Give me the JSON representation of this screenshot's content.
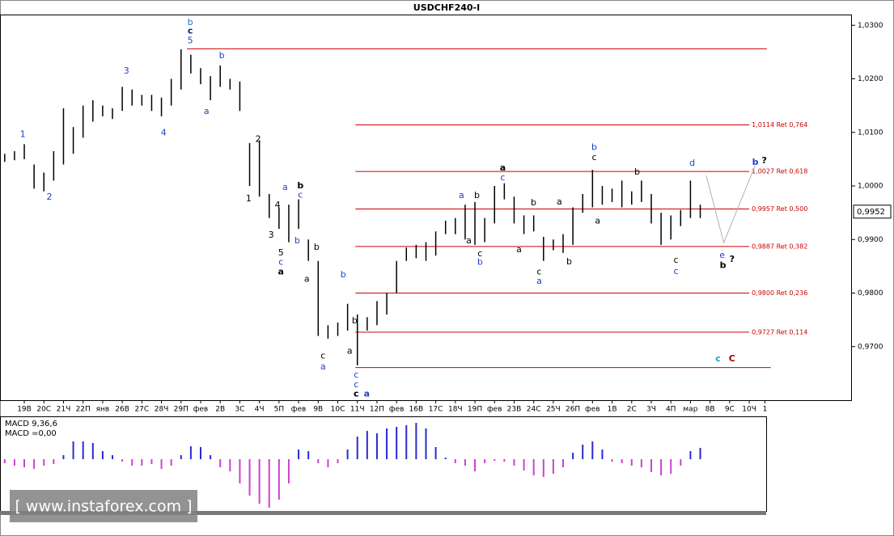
{
  "watermark": "[ www.instaforex.com ]",
  "chart_data": [
    {
      "type": "range-bar",
      "title": "USDCHF240-I",
      "color": "#000000",
      "xlim": [
        -1.24,
        42.2
      ],
      "xticks": [
        {
          "value": 0,
          "label": "19В"
        },
        {
          "value": 1,
          "label": "20С"
        },
        {
          "value": 2,
          "label": "21Ч"
        },
        {
          "value": 3,
          "label": "22П"
        },
        {
          "value": 4,
          "label": "янв"
        },
        {
          "value": 5,
          "label": "26В"
        },
        {
          "value": 6,
          "label": "27С"
        },
        {
          "value": 7,
          "label": "28Ч"
        },
        {
          "value": 8,
          "label": "29П"
        },
        {
          "value": 9,
          "label": "фев"
        },
        {
          "value": 10,
          "label": "2В"
        },
        {
          "value": 11,
          "label": "3С"
        },
        {
          "value": 12,
          "label": "4Ч"
        },
        {
          "value": 13,
          "label": "5П"
        },
        {
          "value": 14,
          "label": "фев"
        },
        {
          "value": 15,
          "label": "9В"
        },
        {
          "value": 16,
          "label": "10С"
        },
        {
          "value": 17,
          "label": "11Ч"
        },
        {
          "value": 18,
          "label": "12П"
        },
        {
          "value": 19,
          "label": "фев"
        },
        {
          "value": 20,
          "label": "16В"
        },
        {
          "value": 21,
          "label": "17С"
        },
        {
          "value": 22,
          "label": "18Ч"
        },
        {
          "value": 23,
          "label": "19П"
        },
        {
          "value": 24,
          "label": "фев"
        },
        {
          "value": 25,
          "label": "23В"
        },
        {
          "value": 26,
          "label": "24С"
        },
        {
          "value": 27,
          "label": "25Ч"
        },
        {
          "value": 28,
          "label": "26П"
        },
        {
          "value": 29,
          "label": "фев"
        },
        {
          "value": 30,
          "label": "1В"
        },
        {
          "value": 31,
          "label": "2С"
        },
        {
          "value": 32,
          "label": "3Ч"
        },
        {
          "value": 33,
          "label": "4П"
        },
        {
          "value": 34,
          "label": "мар"
        },
        {
          "value": 35,
          "label": "8В"
        },
        {
          "value": 36,
          "label": "9С"
        },
        {
          "value": 37,
          "label": "10Ч"
        },
        {
          "value": 37.8,
          "label": "1"
        }
      ],
      "ylim": [
        0.96,
        1.032
      ],
      "yticks": [
        {
          "value": 1.03,
          "label": "1,0300"
        },
        {
          "value": 1.02,
          "label": "1,0200"
        },
        {
          "value": 1.01,
          "label": "1,0100"
        },
        {
          "value": 1.0,
          "label": "1,0000"
        },
        {
          "value": 0.99,
          "label": "0,9900"
        },
        {
          "value": 0.98,
          "label": "0,9800"
        },
        {
          "value": 0.97,
          "label": "0,9700"
        }
      ],
      "last_price": {
        "value": 0.9952,
        "label": "0,9952"
      },
      "x": [
        -1,
        -0.5,
        0,
        0.5,
        1,
        1.5,
        2,
        2.5,
        3,
        3.5,
        4,
        4.5,
        5,
        5.5,
        6,
        6.5,
        7,
        7.5,
        8,
        8.5,
        9,
        9.5,
        10,
        10.5,
        11,
        11.5,
        12,
        12.5,
        13,
        13.5,
        14,
        14.5,
        15,
        15.5,
        16,
        16.5,
        17,
        17.5,
        18,
        18.5,
        19,
        19.5,
        20,
        20.5,
        21,
        21.5,
        22,
        22.5,
        23,
        23.5,
        24,
        24.5,
        25,
        25.5,
        26,
        26.5,
        27,
        27.5,
        28,
        28.5,
        29,
        29.5,
        30,
        30.5,
        31,
        31.5,
        32,
        32.5,
        33,
        33.5,
        34,
        34.5
      ],
      "high": [
        1.006,
        1.0065,
        1.0078,
        1.004,
        1.0025,
        1.0065,
        1.0145,
        1.011,
        1.015,
        1.016,
        1.015,
        1.0145,
        1.0185,
        1.018,
        1.017,
        1.017,
        1.0165,
        1.02,
        1.0255,
        1.0245,
        1.022,
        1.0205,
        1.0225,
        1.02,
        1.0195,
        1.008,
        1.0085,
        0.9985,
        0.996,
        0.9965,
        0.9975,
        0.99,
        0.986,
        0.974,
        0.9745,
        0.978,
        0.976,
        0.9755,
        0.9785,
        0.98,
        0.986,
        0.9885,
        0.989,
        0.9895,
        0.9915,
        0.9935,
        0.994,
        0.9965,
        0.997,
        0.994,
        1.0,
        1.0005,
        0.998,
        0.9945,
        0.9945,
        0.9905,
        0.99,
        0.991,
        0.996,
        0.9985,
        1.003,
        1.0,
        0.9995,
        1.001,
        0.999,
        1.001,
        0.9985,
        0.995,
        0.9945,
        0.9955,
        1.001,
        0.9965
      ],
      "low": [
        1.0045,
        1.0048,
        1.005,
        0.9995,
        0.999,
        1.001,
        1.004,
        1.006,
        1.009,
        1.012,
        1.013,
        1.0125,
        1.014,
        1.015,
        1.015,
        1.014,
        1.013,
        1.015,
        1.018,
        1.021,
        1.019,
        1.016,
        1.0185,
        1.018,
        1.014,
        1.0,
        0.998,
        0.994,
        0.992,
        0.9895,
        0.992,
        0.986,
        0.972,
        0.9715,
        0.972,
        0.973,
        0.9665,
        0.973,
        0.974,
        0.976,
        0.98,
        0.986,
        0.9865,
        0.986,
        0.987,
        0.991,
        0.991,
        0.99,
        0.989,
        0.9895,
        0.993,
        0.9975,
        0.993,
        0.991,
        0.9915,
        0.986,
        0.988,
        0.9875,
        0.989,
        0.995,
        0.996,
        0.9965,
        0.997,
        0.996,
        0.9965,
        0.997,
        0.993,
        0.989,
        0.99,
        0.9925,
        0.994,
        0.994
      ],
      "level_color": "#cc0000",
      "levels": [
        {
          "value": 1.0256,
          "start": 8.3,
          "end": 37.9
        },
        {
          "value": 1.0114,
          "label": "1,0114 Ret 0,764",
          "start": 16.9,
          "end": 37.0
        },
        {
          "value": 1.0027,
          "label": "1,0027 Ret 0,618",
          "start": 16.9,
          "end": 37.0
        },
        {
          "value": 0.9957,
          "label": "0,9957 Ret 0,500",
          "start": 16.9,
          "end": 37.0
        },
        {
          "value": 0.9887,
          "label": "0,9887 Ret 0,382",
          "start": 16.9,
          "end": 37.0
        },
        {
          "value": 0.98,
          "label": "0,9800 Ret 0,236",
          "start": 16.9,
          "end": 37.0
        },
        {
          "value": 0.9727,
          "label": "0,9727 Ret 0,114",
          "start": 16.9,
          "end": 37.0
        },
        {
          "value": 0.9661,
          "start": 16.9,
          "end": 38.1
        }
      ],
      "projection": {
        "color": "#b0b0b0",
        "x": [
          34.8,
          35.7,
          37.3
        ],
        "y": [
          1.002,
          0.9894,
          1.0038
        ]
      },
      "annotations": [
        {
          "text": "1",
          "x": -0.08,
          "y": 1.0096,
          "color": "#1f3fc8"
        },
        {
          "text": "2",
          "x": 1.28,
          "y": 0.9979,
          "color": "#1f3fc8"
        },
        {
          "text": "3",
          "x": 5.21,
          "y": 1.0214,
          "color": "#1f3fc8"
        },
        {
          "text": "4",
          "x": 7.11,
          "y": 1.0099,
          "color": "#1f3fc8"
        },
        {
          "text": "b",
          "x": 8.47,
          "y": 1.0305,
          "color": "#1f6fd0"
        },
        {
          "text": "c",
          "x": 8.47,
          "y": 1.0289,
          "color": "#0d1a7a",
          "bold": true
        },
        {
          "text": "5",
          "x": 8.47,
          "y": 1.0271,
          "color": "#1f3fc8"
        },
        {
          "text": "b",
          "x": 10.08,
          "y": 1.0243,
          "color": "#1f3fc8"
        },
        {
          "text": "a",
          "x": 9.3,
          "y": 1.0139,
          "color": "#1f3fc8"
        },
        {
          "text": "2",
          "x": 11.94,
          "y": 1.0087,
          "color": "#000000"
        },
        {
          "text": "1",
          "x": 11.45,
          "y": 0.9976,
          "color": "#000000"
        },
        {
          "text": "a",
          "x": 13.31,
          "y": 0.9997,
          "color": "#1f3fc8"
        },
        {
          "text": "b",
          "x": 14.09,
          "y": 1.0,
          "color": "#000000",
          "bold": true
        },
        {
          "text": "c",
          "x": 14.09,
          "y": 0.9983,
          "color": "#1f3fc8"
        },
        {
          "text": "4",
          "x": 12.93,
          "y": 0.9964,
          "color": "#000000"
        },
        {
          "text": "3",
          "x": 12.6,
          "y": 0.9908,
          "color": "#000000"
        },
        {
          "text": "5",
          "x": 13.1,
          "y": 0.9875,
          "color": "#000000"
        },
        {
          "text": "c",
          "x": 13.1,
          "y": 0.9857,
          "color": "#1f3fc8"
        },
        {
          "text": "a",
          "x": 13.1,
          "y": 0.9839,
          "color": "#000000",
          "bold": true
        },
        {
          "text": "b",
          "x": 13.93,
          "y": 0.9897,
          "color": "#1f3fc8"
        },
        {
          "text": "b",
          "x": 14.92,
          "y": 0.9885,
          "color": "#000000"
        },
        {
          "text": "a",
          "x": 14.42,
          "y": 0.9826,
          "color": "#000000"
        },
        {
          "text": "b",
          "x": 16.28,
          "y": 0.9834,
          "color": "#1f3fc8"
        },
        {
          "text": "c",
          "x": 15.25,
          "y": 0.9682,
          "color": "#000000"
        },
        {
          "text": "a",
          "x": 15.25,
          "y": 0.9662,
          "color": "#1f3fc8"
        },
        {
          "text": "b",
          "x": 16.86,
          "y": 0.9748,
          "color": "#000000"
        },
        {
          "text": "a",
          "x": 16.61,
          "y": 0.9691,
          "color": "#000000"
        },
        {
          "text": "c",
          "x": 16.94,
          "y": 0.9647,
          "color": "#1f3fc8"
        },
        {
          "text": "c",
          "x": 16.94,
          "y": 0.9629,
          "color": "#1f3fc8"
        },
        {
          "text": "c",
          "x": 16.94,
          "y": 0.9611,
          "color": "#000000",
          "bold": true
        },
        {
          "text": "a",
          "x": 17.48,
          "y": 0.9611,
          "color": "#1f3fc8",
          "bold": true
        },
        {
          "text": "a",
          "x": 24.42,
          "y": 1.0033,
          "color": "#000000",
          "bold": true
        },
        {
          "text": "c",
          "x": 24.42,
          "y": 1.0015,
          "color": "#1f3fc8"
        },
        {
          "text": "a",
          "x": 22.31,
          "y": 0.9982,
          "color": "#1f3fc8"
        },
        {
          "text": "b",
          "x": 23.1,
          "y": 0.9982,
          "color": "#000000"
        },
        {
          "text": "b",
          "x": 25.99,
          "y": 0.9968,
          "color": "#000000"
        },
        {
          "text": "a",
          "x": 22.69,
          "y": 0.9897,
          "color": "#000000"
        },
        {
          "text": "c",
          "x": 23.26,
          "y": 0.9873,
          "color": "#000000"
        },
        {
          "text": "b",
          "x": 23.26,
          "y": 0.9857,
          "color": "#1f3fc8"
        },
        {
          "text": "a",
          "x": 25.25,
          "y": 0.9881,
          "color": "#000000"
        },
        {
          "text": "c",
          "x": 26.28,
          "y": 0.9839,
          "color": "#000000"
        },
        {
          "text": "a",
          "x": 26.28,
          "y": 0.9822,
          "color": "#1f3fc8"
        },
        {
          "text": "a",
          "x": 27.31,
          "y": 0.997,
          "color": "#000000"
        },
        {
          "text": "b",
          "x": 27.81,
          "y": 0.9858,
          "color": "#000000"
        },
        {
          "text": "b",
          "x": 29.09,
          "y": 1.0072,
          "color": "#1f3fc8"
        },
        {
          "text": "c",
          "x": 29.09,
          "y": 1.0053,
          "color": "#000000"
        },
        {
          "text": "a",
          "x": 29.26,
          "y": 0.9934,
          "color": "#000000"
        },
        {
          "text": "b",
          "x": 31.28,
          "y": 1.0026,
          "color": "#000000"
        },
        {
          "text": "d",
          "x": 34.09,
          "y": 1.0042,
          "color": "#1f3fc8"
        },
        {
          "text": "c",
          "x": 33.26,
          "y": 0.9861,
          "color": "#000000"
        },
        {
          "text": "c",
          "x": 33.26,
          "y": 0.984,
          "color": "#1f3fc8"
        },
        {
          "text": "e",
          "x": 35.62,
          "y": 0.987,
          "color": "#1f3fc8"
        },
        {
          "text": "b",
          "x": 35.66,
          "y": 0.9851,
          "color": "#000000",
          "bold": true
        },
        {
          "text": "?",
          "x": 36.12,
          "y": 0.9863,
          "color": "#000000",
          "bold": true
        },
        {
          "text": "b",
          "x": 37.31,
          "y": 1.0044,
          "color": "#1f3fc8",
          "bold": true
        },
        {
          "text": "?",
          "x": 37.77,
          "y": 1.0047,
          "color": "#000000",
          "bold": true
        },
        {
          "text": "c",
          "x": 35.41,
          "y": 0.9677,
          "color": "#1fa0c8",
          "bold": true
        },
        {
          "text": "C",
          "x": 36.12,
          "y": 0.9677,
          "color": "#a00000",
          "bold": true
        }
      ]
    },
    {
      "type": "histogram-bar",
      "label": "MACD 9,36,6",
      "value_label": "MACD =0,00",
      "color": "#2a2ad0",
      "negative_color": "#d040d0",
      "xlim": [
        -1.24,
        42.2
      ],
      "ylim": [
        -0.0064,
        0.0053
      ],
      "x": [
        -1,
        -0.5,
        0,
        0.5,
        1,
        1.5,
        2,
        2.5,
        3,
        3.5,
        4,
        4.5,
        5,
        5.5,
        6,
        6.5,
        7,
        7.5,
        8,
        8.5,
        9,
        9.5,
        10,
        10.5,
        11,
        11.5,
        12,
        12.5,
        13,
        13.5,
        14,
        14.5,
        15,
        15.5,
        16,
        16.5,
        17,
        17.5,
        18,
        18.5,
        19,
        19.5,
        20,
        20.5,
        21,
        21.5,
        22,
        22.5,
        23,
        23.5,
        24,
        24.5,
        25,
        25.5,
        26,
        26.5,
        27,
        27.5,
        28,
        28.5,
        29,
        29.5,
        30,
        30.5,
        31,
        31.5,
        32,
        32.5,
        33,
        33.5,
        34,
        34.5
      ],
      "values": [
        -0.0005,
        -0.0008,
        -0.001,
        -0.0012,
        -0.0008,
        -0.0006,
        0.0005,
        0.0022,
        0.0022,
        0.002,
        0.001,
        0.0005,
        -0.0003,
        -0.0008,
        -0.0008,
        -0.0006,
        -0.0012,
        -0.0008,
        0.0005,
        0.0016,
        0.0015,
        0.0005,
        -0.001,
        -0.0015,
        -0.003,
        -0.0045,
        -0.0055,
        -0.006,
        -0.005,
        -0.003,
        0.0012,
        0.001,
        -0.0005,
        -0.001,
        -0.0005,
        0.0012,
        0.0028,
        0.0035,
        0.0032,
        0.0038,
        0.004,
        0.0042,
        0.0045,
        0.0038,
        0.0015,
        0.0002,
        -0.0005,
        -0.0008,
        -0.0015,
        -0.0005,
        -0.0002,
        -0.0003,
        -0.0008,
        -0.0014,
        -0.002,
        -0.0022,
        -0.0018,
        -0.001,
        0.0008,
        0.0018,
        0.0022,
        0.0012,
        -0.0003,
        -0.0005,
        -0.0008,
        -0.001,
        -0.0016,
        -0.002,
        -0.0018,
        -0.0008,
        0.001,
        0.0014
      ]
    }
  ]
}
